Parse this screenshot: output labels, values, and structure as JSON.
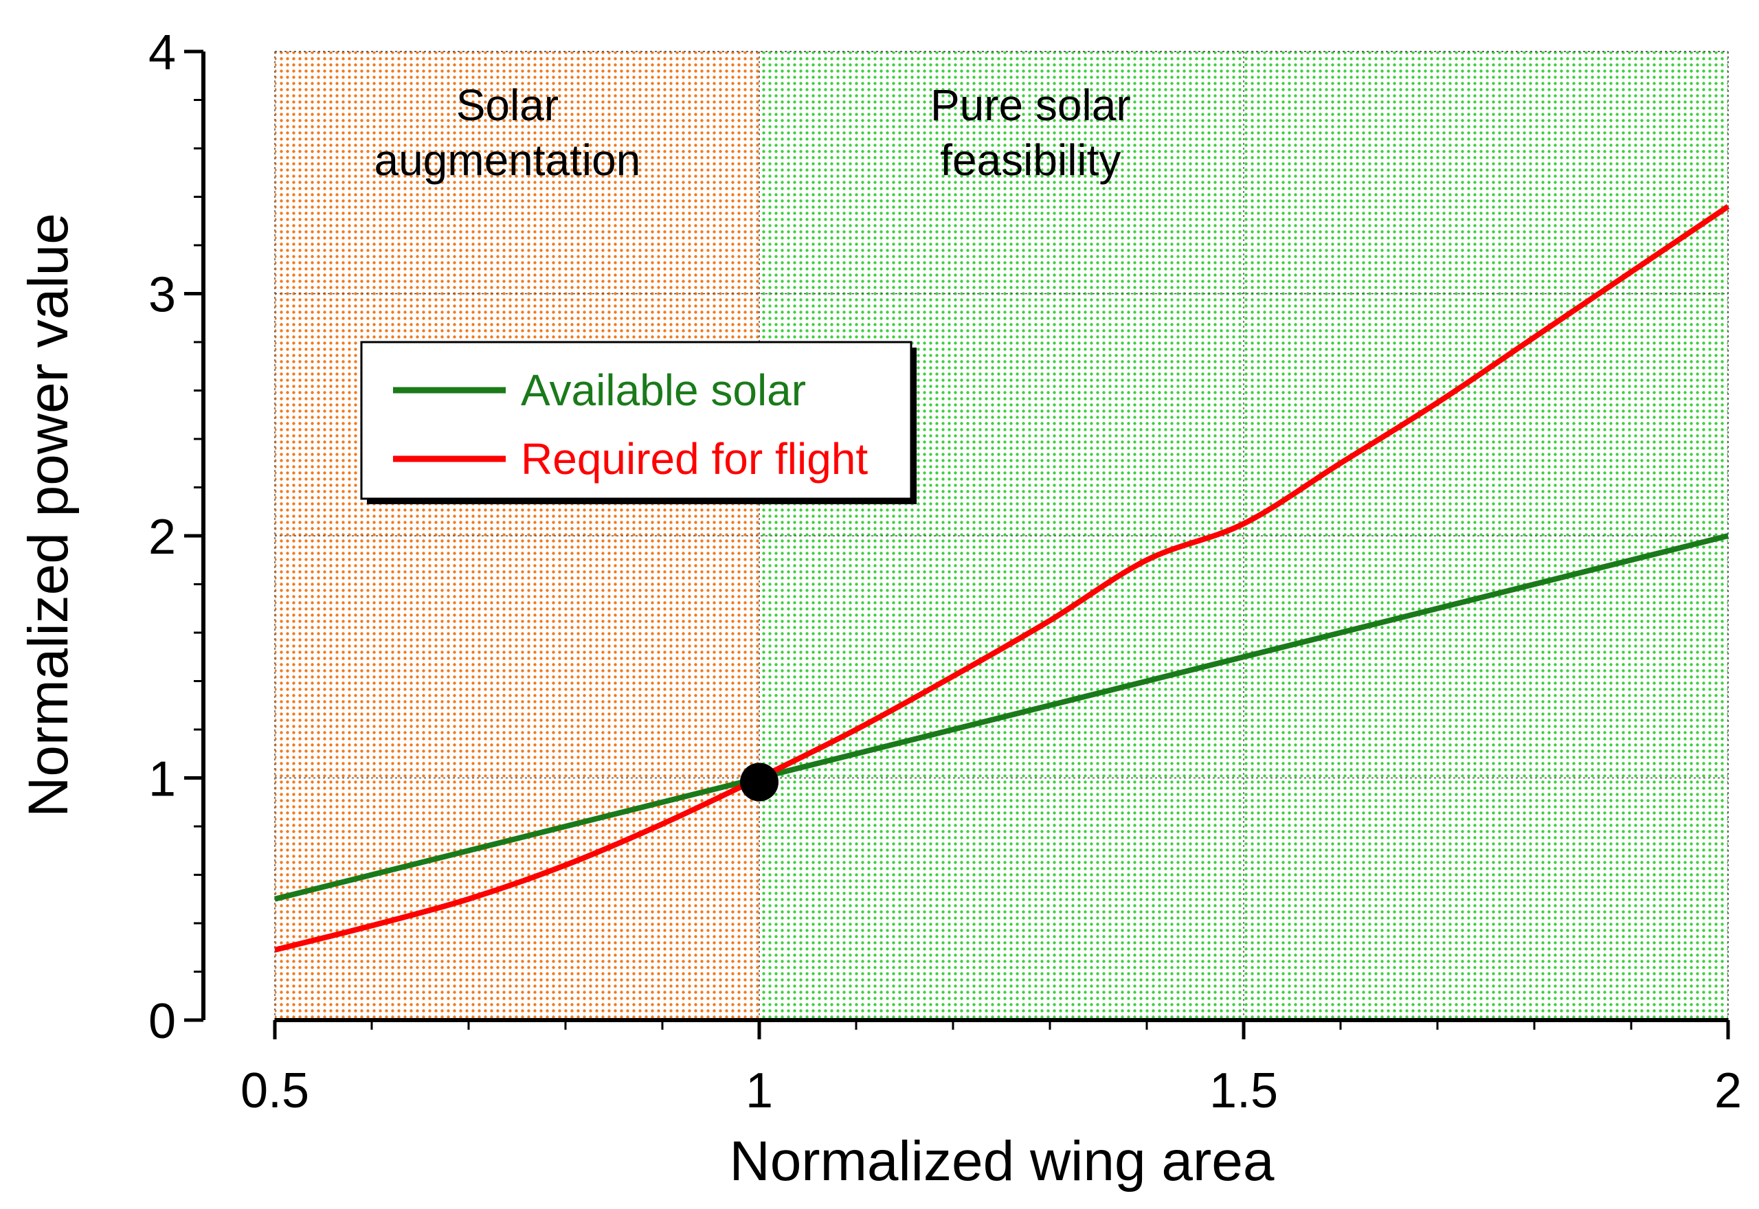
{
  "chart_data": {
    "type": "line",
    "title": "",
    "xlabel": "Normalized wing area",
    "ylabel": "Normalized power value",
    "xlim": [
      0.5,
      2
    ],
    "ylim": [
      0,
      4
    ],
    "x_ticks": [
      0.5,
      1,
      1.5,
      2
    ],
    "x_tick_labels": [
      "0.5",
      "1",
      "1.5",
      "2"
    ],
    "y_ticks": [
      0,
      1,
      2,
      3,
      4
    ],
    "y_tick_labels": [
      "0",
      "1",
      "2",
      "3",
      "4"
    ],
    "grid": true,
    "legend_position": "upper-left",
    "series": [
      {
        "name": "Available solar",
        "color": "#1a7a1a",
        "x": [
          0.5,
          0.6,
          0.7,
          0.8,
          0.9,
          1.0,
          1.1,
          1.2,
          1.3,
          1.4,
          1.5,
          1.6,
          1.7,
          1.8,
          1.9,
          2.0
        ],
        "y": [
          0.5,
          0.6,
          0.7,
          0.8,
          0.9,
          1.0,
          1.1,
          1.2,
          1.3,
          1.4,
          1.5,
          1.6,
          1.7,
          1.8,
          1.9,
          2.0
        ]
      },
      {
        "name": "Required for flight",
        "color": "#ff0000",
        "x": [
          0.5,
          0.6,
          0.7,
          0.8,
          0.9,
          1.0,
          1.1,
          1.2,
          1.3,
          1.4,
          1.5,
          1.6,
          1.7,
          1.8,
          1.9,
          2.0
        ],
        "y": [
          0.29,
          0.39,
          0.5,
          0.64,
          0.81,
          1.0,
          1.2,
          1.42,
          1.65,
          1.9,
          2.05,
          2.3,
          2.55,
          2.82,
          3.09,
          3.36
        ]
      }
    ],
    "regions": [
      {
        "label_lines": [
          "Solar",
          "augmentation"
        ],
        "x_range": [
          0.5,
          1.0
        ],
        "color": "#f07a1e"
      },
      {
        "label_lines": [
          "Pure solar",
          "feasibility"
        ],
        "x_range": [
          1.0,
          2.0
        ],
        "color": "#3ecf3e"
      }
    ],
    "markers": [
      {
        "x": 1.0,
        "y": 1.0,
        "color": "#000000"
      }
    ]
  }
}
